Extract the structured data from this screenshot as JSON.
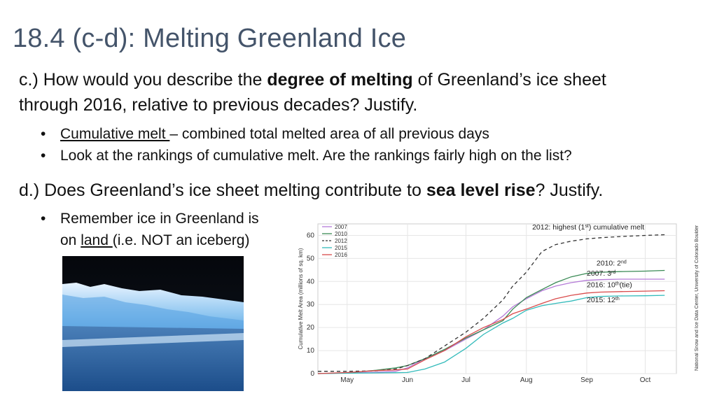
{
  "slide": {
    "title": "18.4 (c-d): Melting Greenland Ice",
    "q_c": {
      "label": "c.) How would you describe the ",
      "bold": "degree of melting",
      "rest1": " of Greenland’s ice sheet",
      "rest2": "through 2016, relative to previous decades? Justify."
    },
    "bullets_c": [
      {
        "term": "Cumulative melt ",
        "text": "– combined total melted area of all previous days"
      },
      {
        "text": "Look at the rankings of cumulative melt. Are the rankings fairly high on the list?"
      }
    ],
    "q_d": {
      "label": "d.) Does Greenland’s ice sheet melting contribute to ",
      "bold": "sea level rise",
      "rest": "? Justify."
    },
    "bullet_d": {
      "line1": "Remember ice in Greenland is",
      "pre": "on ",
      "term": "land ",
      "post": "(i.e. NOT an iceberg)"
    },
    "photo_alt": "glacier",
    "credit": "National Snow and Ice Data Center, University of Colorado Boulder"
  },
  "chart_data": {
    "type": "line",
    "xlabel": "",
    "ylabel": "Cumulative Melt Area (millions of sq. km)",
    "ylim": [
      0,
      65
    ],
    "yticks": [
      0,
      10,
      20,
      30,
      40,
      50,
      60
    ],
    "xlim": [
      0,
      184
    ],
    "x_tick_days": [
      15,
      46,
      76,
      107,
      138,
      168
    ],
    "x_tick_labels": [
      "May",
      "Jun",
      "Jul",
      "Aug",
      "Sep",
      "Oct"
    ],
    "days": [
      0,
      15,
      30,
      40,
      46,
      55,
      65,
      76,
      85,
      95,
      100,
      107,
      115,
      122,
      130,
      138,
      145,
      155,
      168,
      178
    ],
    "series": [
      {
        "name": "2007",
        "color": "#b57bd8",
        "dash": "",
        "values": [
          0,
          0.3,
          0.6,
          1,
          2.5,
          6.5,
          10,
          15,
          19,
          25,
          29,
          32.5,
          36,
          38,
          39.5,
          40.5,
          40.8,
          41,
          41,
          41
        ]
      },
      {
        "name": "2010",
        "color": "#3a8a55",
        "dash": "",
        "values": [
          0,
          0.3,
          1.5,
          2.5,
          3.5,
          6.5,
          10.5,
          15.5,
          19,
          23,
          28,
          33,
          36.5,
          39.5,
          42,
          43.5,
          44,
          44.3,
          44.5,
          44.8
        ]
      },
      {
        "name": "2012",
        "color": "#333333",
        "dash": "5,4",
        "values": [
          1,
          1,
          1.2,
          2,
          3.5,
          6.5,
          12,
          18,
          24,
          32,
          38,
          44,
          53,
          56,
          57.5,
          58.5,
          59,
          59.5,
          60,
          60.3
        ]
      },
      {
        "name": "2015",
        "color": "#33bbbb",
        "dash": "",
        "values": [
          0,
          0.2,
          0.3,
          0.4,
          0.5,
          2,
          5,
          11,
          17,
          22,
          24,
          27.5,
          29.5,
          30.5,
          31.5,
          33,
          33.5,
          33.7,
          33.8,
          34
        ]
      },
      {
        "name": "2016",
        "color": "#d94b4b",
        "dash": "",
        "values": [
          0,
          0.5,
          1.3,
          1.6,
          2,
          6,
          10,
          16,
          20,
          23.5,
          26,
          28,
          30.5,
          32.5,
          34,
          35,
          35.4,
          35.6,
          35.8,
          36
        ]
      }
    ],
    "annotations": [
      {
        "text": "2012: highest (1",
        "sup": "st",
        "tail": ") cumulative melt",
        "x": 110,
        "y": 62.5
      },
      {
        "text": "2010: 2",
        "sup": "nd",
        "tail": "",
        "x": 143,
        "y": 47
      },
      {
        "text": "2007: 3",
        "sup": "rd",
        "tail": "",
        "x": 138,
        "y": 42.5
      },
      {
        "text": "2016: 10",
        "sup": "th",
        "tail": "(tie)",
        "x": 138,
        "y": 37.5
      },
      {
        "text": "2015: 12",
        "sup": "th",
        "tail": "",
        "x": 138,
        "y": 31
      }
    ]
  }
}
